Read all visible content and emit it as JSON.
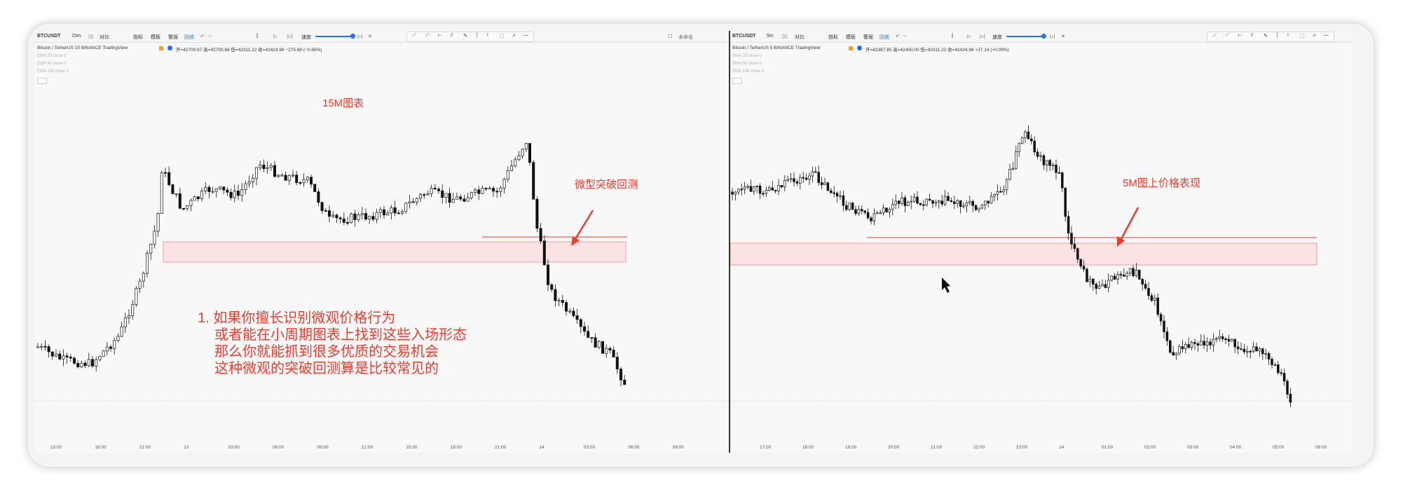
{
  "left": {
    "symbol": "BTCUSDT",
    "interval": "15m",
    "toolbar": {
      "compare": "对比",
      "indicators": "指标",
      "templates": "模板",
      "alert": "警报",
      "replay": "回放",
      "speed": "速度",
      "unnamed": "未命名"
    },
    "legend": "Bitcoin / TetherUS 15 BINANCE TradingView",
    "ohlc": "开=42700.67 高=42700.68 低=42311.22 收=42424.98 −275.69 (−0.65%)",
    "indicators": [
      "EMA 20 close 0",
      "EMA 50 close 0",
      "EMA 100 close 0"
    ],
    "time_labels": [
      "15:00",
      "18:00",
      "21:00",
      "13",
      "03:00",
      "06:00",
      "09:00",
      "12:00",
      "15:00",
      "18:00",
      "21:00",
      "14",
      "03:00",
      "06:00",
      "09:00"
    ],
    "chart_title": "15M图表",
    "callout": "微型突破回测",
    "notes": [
      "1. 如果你擅长识别微观价格行为",
      "或者能在小周期图表上找到这些入场形态",
      "那么你就能抓到很多优质的交易机会",
      "这种微观的突破回测算是比较常见的"
    ]
  },
  "right": {
    "symbol": "BTCUSDT",
    "interval": "5m",
    "toolbar": {
      "compare": "对比",
      "indicators": "指标",
      "templates": "模板",
      "alert": "警报",
      "replay": "回放",
      "speed": "速度"
    },
    "legend": "Bitcoin / TetherUS 5 BINANCE TradingView",
    "ohlc": "开=42387.85 高=42450.00 低=42311.22 收=42424.98 +37.14 (+0.09%)",
    "indicators": [
      "EMA 20 close 0",
      "EMA 50 close 0",
      "EMA 100 close 0"
    ],
    "time_labels": [
      "17:00",
      "18:00",
      "19:00",
      "20:00",
      "21:00",
      "22:00",
      "23:00",
      "14",
      "01:00",
      "02:00",
      "03:00",
      "04:00",
      "05:00",
      "06:00"
    ],
    "callout": "5M图上价格表现"
  },
  "colors": {
    "accent": "#ea3d2f",
    "bull": "#ffffff",
    "bear": "#111111",
    "zone_fill": "#fbe3e3",
    "zone_border": "#f08a8a",
    "toolbar_blue": "#2a6cf2"
  }
}
